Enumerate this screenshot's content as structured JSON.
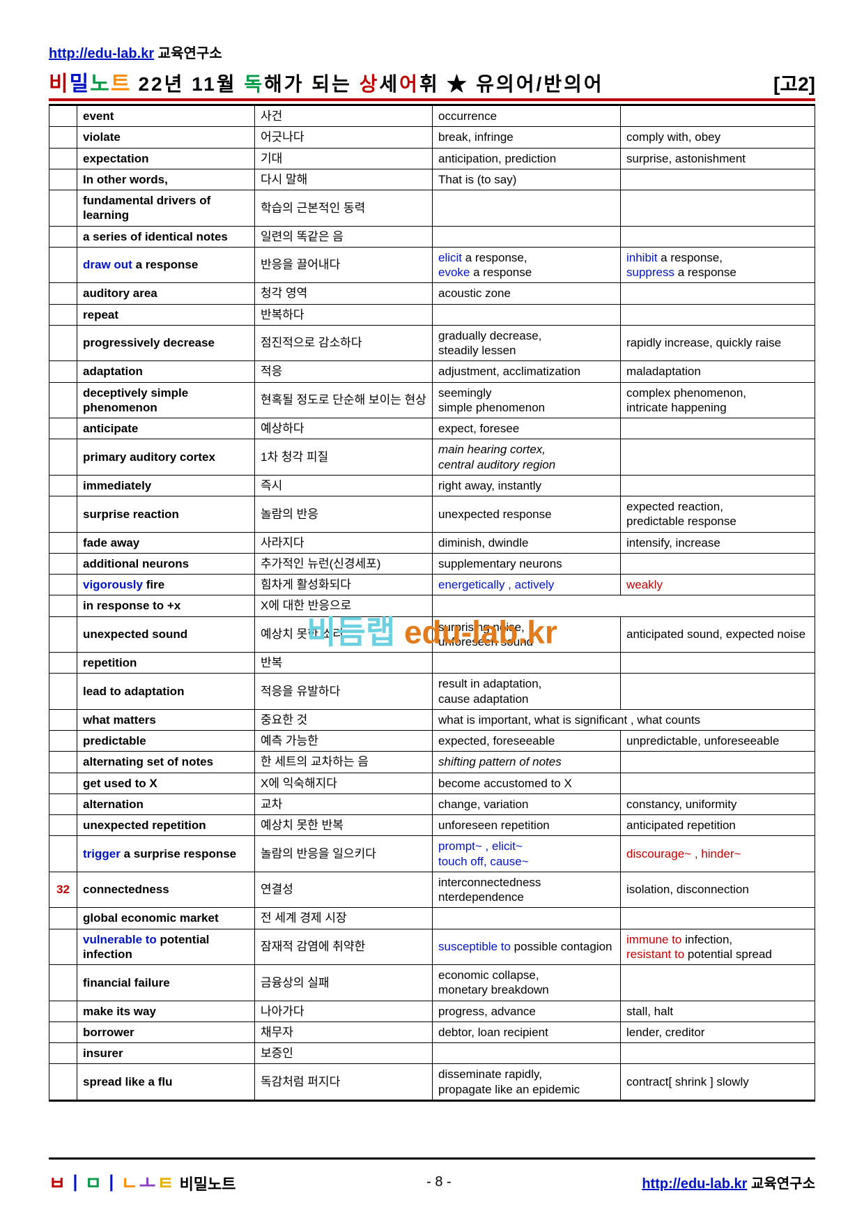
{
  "header": {
    "url": "http://edu-lab.kr",
    "site_ko": " 교육연구소",
    "logo": [
      {
        "t": "비",
        "c": "#c00000"
      },
      {
        "t": "밀",
        "c": "#0015c1"
      },
      {
        "t": "노",
        "c": "#009a44"
      },
      {
        "t": "트",
        "c": "#ff8c00"
      }
    ],
    "title_parts": [
      {
        "t": "22년  11월 ",
        "c": "#000"
      },
      {
        "t": "독",
        "c": "#009a44"
      },
      {
        "t": "해가  되는  ",
        "c": "#000"
      },
      {
        "t": "상",
        "c": "#c00000"
      },
      {
        "t": "세",
        "c": "#000"
      },
      {
        "t": "어",
        "c": "#c00000"
      },
      {
        "t": "휘 ★ 유의어/반의어",
        "c": "#000"
      }
    ],
    "grade": "[고2]"
  },
  "watermark": [
    {
      "t": "비",
      "c": "#6bd0e0"
    },
    {
      "t": "듬",
      "c": "#6bd0e0"
    },
    {
      "t": "랩",
      "c": "#6bd0e0"
    },
    {
      "t": " edu-lab.kr",
      "c": "#e07c1e"
    }
  ],
  "rows": [
    {
      "n": "",
      "w": [
        {
          "t": "event"
        }
      ],
      "k": "사건",
      "s": [
        {
          "t": "occurrence"
        }
      ],
      "a": []
    },
    {
      "n": "",
      "w": [
        {
          "t": "violate"
        }
      ],
      "k": "어긋나다",
      "s": [
        {
          "t": "break, infringe"
        }
      ],
      "a": [
        {
          "t": "comply with, obey"
        }
      ]
    },
    {
      "n": "",
      "w": [
        {
          "t": "expectation"
        }
      ],
      "k": "기대",
      "s": [
        {
          "t": "anticipation, prediction"
        }
      ],
      "a": [
        {
          "t": "surprise, astonishment"
        }
      ]
    },
    {
      "n": "",
      "w": [
        {
          "t": "In other words,"
        }
      ],
      "k": "다시 말해",
      "s": [
        {
          "t": "That is (to say)"
        }
      ],
      "a": []
    },
    {
      "n": "",
      "w": [
        {
          "t": "fundamental drivers of learning"
        }
      ],
      "k": "학습의 근본적인 동력",
      "s": [],
      "a": []
    },
    {
      "n": "",
      "w": [
        {
          "t": "a series of identical notes"
        }
      ],
      "k": "일련의 똑같은 음",
      "s": [],
      "a": []
    },
    {
      "n": "",
      "w": [
        {
          "t": "draw out",
          "c": "#0015c1"
        },
        {
          "t": " a response"
        }
      ],
      "k": "반응을 끌어내다",
      "s": [
        {
          "t": "elicit",
          "c": "#0015c1"
        },
        {
          "t": " a response,\n"
        },
        {
          "t": "evoke",
          "c": "#0015c1"
        },
        {
          "t": " a response"
        }
      ],
      "a": [
        {
          "t": "inhibit",
          "c": "#0015c1"
        },
        {
          "t": " a response,\n"
        },
        {
          "t": "suppress",
          "c": "#0015c1"
        },
        {
          "t": " a response"
        }
      ]
    },
    {
      "n": "",
      "w": [
        {
          "t": "auditory area"
        }
      ],
      "k": "청각 영역",
      "s": [
        {
          "t": "acoustic zone"
        }
      ],
      "a": []
    },
    {
      "n": "",
      "w": [
        {
          "t": "repeat"
        }
      ],
      "k": "반복하다",
      "s": [],
      "a": []
    },
    {
      "n": "",
      "w": [
        {
          "t": "progressively decrease"
        }
      ],
      "k": "점진적으로 감소하다",
      "s": [
        {
          "t": "gradually decrease,\nsteadily lessen"
        }
      ],
      "a": [
        {
          "t": "rapidly increase, quickly raise"
        }
      ]
    },
    {
      "n": "",
      "w": [
        {
          "t": "adaptation"
        }
      ],
      "k": "적응",
      "s": [
        {
          "t": "adjustment, acclimatization"
        }
      ],
      "a": [
        {
          "t": "maladaptation"
        }
      ]
    },
    {
      "n": "",
      "w": [
        {
          "t": "deceptively simple phenomenon"
        }
      ],
      "k": "현혹될 정도로 단순해 보이는 현상",
      "s": [
        {
          "t": "seemingly\nsimple phenomenon"
        }
      ],
      "a": [
        {
          "t": "complex phenomenon,\nintricate happening"
        }
      ]
    },
    {
      "n": "",
      "w": [
        {
          "t": "anticipate"
        }
      ],
      "k": "예상하다",
      "s": [
        {
          "t": "expect, foresee"
        }
      ],
      "a": []
    },
    {
      "n": "",
      "w": [
        {
          "t": "primary auditory cortex"
        }
      ],
      "k": "1차 청각 피질",
      "s": [
        {
          "t": "main hearing cortex,\ncentral auditory region",
          "i": true
        }
      ],
      "a": []
    },
    {
      "n": "",
      "w": [
        {
          "t": "immediately"
        }
      ],
      "k": "즉시",
      "s": [
        {
          "t": "right away, instantly"
        }
      ],
      "a": []
    },
    {
      "n": "",
      "w": [
        {
          "t": "surprise reaction"
        }
      ],
      "k": "놀람의 반응",
      "s": [
        {
          "t": "unexpected response"
        }
      ],
      "a": [
        {
          "t": "expected reaction,\npredictable response"
        }
      ]
    },
    {
      "n": "",
      "w": [
        {
          "t": "fade away"
        }
      ],
      "k": "사라지다",
      "s": [
        {
          "t": "diminish, dwindle"
        }
      ],
      "a": [
        {
          "t": "intensify, increase"
        }
      ]
    },
    {
      "n": "",
      "w": [
        {
          "t": "additional neurons"
        }
      ],
      "k": "추가적인 뉴런(신경세포)",
      "s": [
        {
          "t": "supplementary neurons"
        }
      ],
      "a": []
    },
    {
      "n": "",
      "w": [
        {
          "t": "vigorously",
          "c": "#0015c1"
        },
        {
          "t": " fire"
        }
      ],
      "k": "힘차게 활성화되다",
      "s": [
        {
          "t": "energetically , actively",
          "c": "#0015c1"
        }
      ],
      "a": [
        {
          "t": "weakly",
          "c": "#c00000"
        }
      ]
    },
    {
      "n": "",
      "w": [
        {
          "t": "in response to +x"
        }
      ],
      "k": "X에 대한 반응으로",
      "s": [],
      "a": [],
      "merge34": true
    },
    {
      "n": "",
      "w": [
        {
          "t": "unexpected sound"
        }
      ],
      "k": "예상치 못한 소리",
      "s": [
        {
          "t": "surprising noise,\nunforeseen sound"
        }
      ],
      "a": [
        {
          "t": "anticipated sound, expected noise"
        }
      ]
    },
    {
      "n": "",
      "w": [
        {
          "t": "repetition"
        }
      ],
      "k": "반복",
      "s": [],
      "a": []
    },
    {
      "n": "",
      "w": [
        {
          "t": "lead to adaptation"
        }
      ],
      "k": "적응을 유발하다",
      "s": [
        {
          "t": "result in adaptation,\ncause adaptation"
        }
      ],
      "a": []
    },
    {
      "n": "",
      "w": [
        {
          "t": "what matters"
        }
      ],
      "k": "중요한 것",
      "s": [
        {
          "t": "what is important,  what is significant , what counts"
        }
      ],
      "a": [],
      "merge34": true
    },
    {
      "n": "",
      "w": [
        {
          "t": "predictable"
        }
      ],
      "k": "예측 가능한",
      "s": [
        {
          "t": "expected, foreseeable"
        }
      ],
      "a": [
        {
          "t": "unpredictable, unforeseeable"
        }
      ]
    },
    {
      "n": "",
      "w": [
        {
          "t": "alternating set of notes"
        }
      ],
      "k": "한 세트의 교차하는 음",
      "s": [
        {
          "t": "shifting pattern of notes",
          "i": true
        }
      ],
      "a": []
    },
    {
      "n": "",
      "w": [
        {
          "t": "get used to X"
        }
      ],
      "k": "X에 익숙해지다",
      "s": [
        {
          "t": "become accustomed to X"
        }
      ],
      "a": []
    },
    {
      "n": "",
      "w": [
        {
          "t": "alternation"
        }
      ],
      "k": "교차",
      "s": [
        {
          "t": "change, variation"
        }
      ],
      "a": [
        {
          "t": "constancy, uniformity"
        }
      ]
    },
    {
      "n": "",
      "w": [
        {
          "t": "unexpected repetition"
        }
      ],
      "k": "예상치 못한 반복",
      "s": [
        {
          "t": "unforeseen repetition"
        }
      ],
      "a": [
        {
          "t": "anticipated repetition"
        }
      ]
    },
    {
      "n": "",
      "w": [
        {
          "t": "trigger",
          "c": "#0015c1"
        },
        {
          "t": " a surprise response"
        }
      ],
      "k": "놀람의 반응을 일으키다",
      "s": [
        {
          "t": "prompt~ , elicit~\ntouch off, cause~",
          "c": "#0015c1"
        }
      ],
      "a": [
        {
          "t": "discourage~ , hinder~",
          "c": "#c00000"
        }
      ]
    },
    {
      "n": "32",
      "w": [
        {
          "t": "connectedness"
        }
      ],
      "k": "연결성",
      "s": [
        {
          "t": "interconnectedness\nnterdependence"
        }
      ],
      "a": [
        {
          "t": "isolation, disconnection"
        }
      ]
    },
    {
      "n": "",
      "w": [
        {
          "t": "global economic market"
        }
      ],
      "k": "전 세계 경제 시장",
      "s": [],
      "a": []
    },
    {
      "n": "",
      "w": [
        {
          "t": " vulnerable to",
          "c": "#0015c1"
        },
        {
          "t": " potential infection"
        }
      ],
      "k": "잠재적 감염에 취약한",
      "s": [
        {
          "t": "susceptible to",
          "c": "#0015c1"
        },
        {
          "t": " possible contagion"
        }
      ],
      "a": [
        {
          "t": "immune to",
          "c": "#c00000"
        },
        {
          "t": " infection,\n"
        },
        {
          "t": "resistant to",
          "c": "#c00000"
        },
        {
          "t": " potential spread"
        }
      ]
    },
    {
      "n": "",
      "w": [
        {
          "t": "financial failure"
        }
      ],
      "k": "금융상의 실패",
      "s": [
        {
          "t": "economic collapse,\nmonetary breakdown"
        }
      ],
      "a": []
    },
    {
      "n": "",
      "w": [
        {
          "t": "make its way"
        }
      ],
      "k": "나아가다",
      "s": [
        {
          "t": "progress, advance"
        }
      ],
      "a": [
        {
          "t": "stall, halt"
        }
      ]
    },
    {
      "n": "",
      "w": [
        {
          "t": "borrower"
        }
      ],
      "k": "채무자",
      "s": [
        {
          "t": "debtor, loan recipient"
        }
      ],
      "a": [
        {
          "t": "lender, creditor"
        }
      ]
    },
    {
      "n": "",
      "w": [
        {
          "t": "insurer"
        }
      ],
      "k": "보증인",
      "s": [],
      "a": []
    },
    {
      "n": "",
      "w": [
        {
          "t": "spread like a flu"
        }
      ],
      "k": "독감처럼 퍼지다",
      "s": [
        {
          "t": "disseminate rapidly,\npropagate like an epidemic"
        }
      ],
      "a": [
        {
          "t": "contract[ shrink ] slowly"
        }
      ]
    }
  ],
  "footer": {
    "logo_small": [
      {
        "t": "ㅂ",
        "c": "#c00000"
      },
      {
        "t": "ㅣ",
        "c": "#0015c1"
      },
      {
        "t": "ㅁ",
        "c": "#009a44"
      },
      {
        "t": "ㅣ",
        "c": "#0015c1"
      },
      {
        "t": "ㄴ",
        "c": "#ff8c00"
      },
      {
        "t": "ㅗ",
        "c": "#8a3fc4"
      },
      {
        "t": "ㅌ",
        "c": "#e8b000"
      }
    ],
    "logo_word": " 비밀노트",
    "page": "- 8 -",
    "url": "http://edu-lab.kr",
    "site_ko": " 교육연구소"
  }
}
